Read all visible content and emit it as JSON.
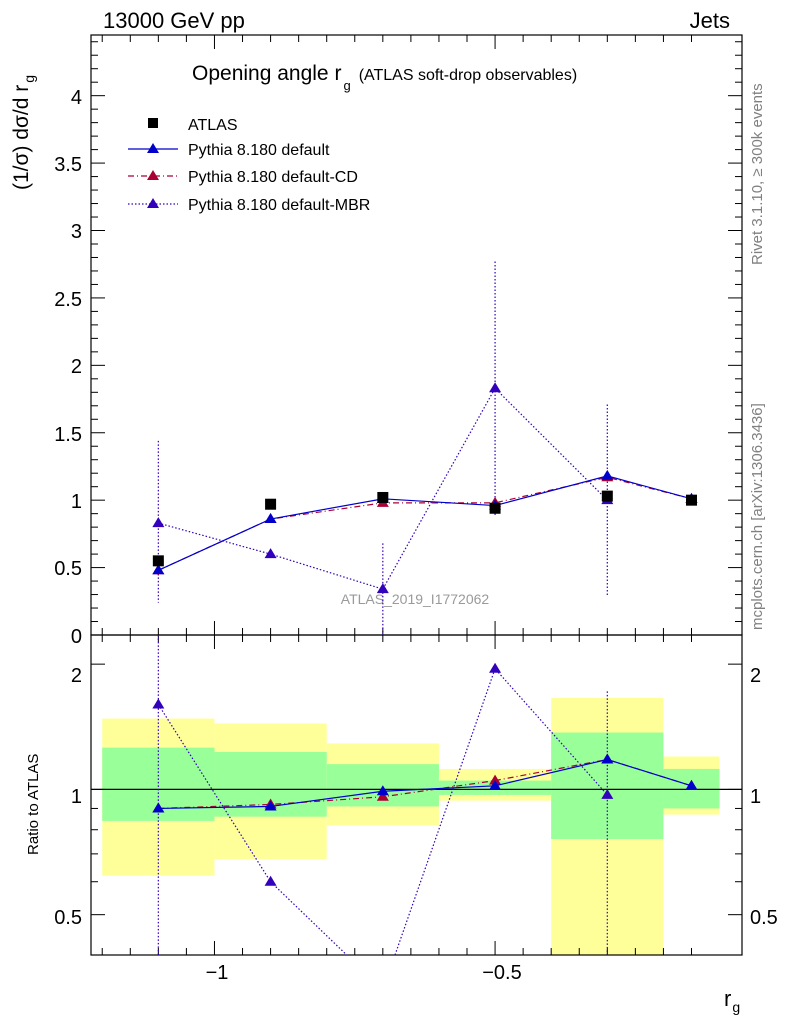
{
  "header": {
    "energy": "13000 GeV pp",
    "process": "Jets"
  },
  "side_labels": {
    "rivet": "Rivet 3.1.10, ≥ 300k events",
    "mcplots": "mcplots.cern.ch [arXiv:1306.3436]"
  },
  "watermark": "ATLAS_2019_I1772062",
  "title": {
    "main": "Opening angle r",
    "sub": "g",
    "note": "(ATLAS soft-drop observables)"
  },
  "axes": {
    "x_label": "r",
    "x_label_sub": "g",
    "y_label": "(1/σ) dσ/d r",
    "y_label_sub": "g",
    "ratio_label": "Ratio to ATLAS",
    "x_ticks": [
      "−1",
      "−0.5"
    ],
    "y_ticks": [
      "0",
      "0.5",
      "1",
      "1.5",
      "2",
      "2.5",
      "3",
      "3.5",
      "4"
    ],
    "ratio_ticks": [
      "0.5",
      "1",
      "2"
    ]
  },
  "legend": [
    {
      "label": "ATLAS"
    },
    {
      "label": "Pythia 8.180 default"
    },
    {
      "label": "Pythia 8.180 default-CD"
    },
    {
      "label": "Pythia 8.180 default-MBR"
    }
  ],
  "colors": {
    "data": "#000000",
    "default": "#0000cc",
    "cd": "#aa0033",
    "mbr": "#3300bb",
    "band_inner": "#99ff99",
    "band_outer": "#ffff99"
  },
  "chart_data": {
    "type": "line",
    "x_range": [
      -1.22,
      -0.06
    ],
    "main": {
      "y_range": [
        0,
        4.45
      ],
      "bins": [
        [
          -1.2,
          -1.0
        ],
        [
          -1.0,
          -0.8
        ],
        [
          -0.8,
          -0.6
        ],
        [
          -0.6,
          -0.4
        ],
        [
          -0.4,
          -0.2
        ],
        [
          -0.2,
          -0.1
        ]
      ],
      "x": [
        -1.1,
        -0.9,
        -0.7,
        -0.5,
        -0.3,
        -0.15
      ],
      "series": [
        {
          "name": "ATLAS",
          "values": [
            0.55,
            0.97,
            1.02,
            0.94,
            1.03,
            1.0
          ]
        },
        {
          "name": "Pythia 8.180 default",
          "values": [
            0.48,
            0.86,
            1.01,
            0.96,
            1.18,
            1.01
          ]
        },
        {
          "name": "Pythia 8.180 default-CD",
          "values": [
            0.48,
            0.86,
            0.98,
            0.98,
            1.17,
            1.01
          ],
          "err_low": [
            0.05,
            0.02,
            0.02,
            0.02,
            0.02,
            0.01
          ],
          "err_high": [
            0.05,
            0.02,
            0.02,
            0.02,
            0.02,
            0.01
          ]
        },
        {
          "name": "Pythia 8.180 default-MBR",
          "values": [
            0.83,
            0.6,
            0.34,
            1.83,
            1.0,
            null
          ],
          "err_low": [
            0.59,
            0.0,
            0.34,
            0.95,
            0.71,
            0
          ],
          "err_high": [
            0.61,
            0.0,
            0.34,
            0.94,
            0.71,
            0
          ]
        }
      ]
    },
    "ratio": {
      "y_range": [
        0.4,
        2.35
      ],
      "log_scale": true,
      "reference": 1.0,
      "inner_band": [
        [
          0.84,
          1.26
        ],
        [
          0.86,
          1.23
        ],
        [
          0.91,
          1.15
        ],
        [
          0.97,
          1.05
        ],
        [
          0.76,
          1.37
        ],
        [
          0.9,
          1.12
        ]
      ],
      "outer_band": [
        [
          0.62,
          1.48
        ],
        [
          0.68,
          1.44
        ],
        [
          0.82,
          1.29
        ],
        [
          0.94,
          1.12
        ],
        [
          0.35,
          1.66
        ],
        [
          0.87,
          1.2
        ]
      ],
      "series": [
        {
          "name": "Pythia 8.180 default",
          "values": [
            0.9,
            0.91,
            0.99,
            1.02,
            1.18,
            1.02
          ]
        },
        {
          "name": "Pythia 8.180 default-CD",
          "values": [
            0.9,
            0.92,
            0.96,
            1.05,
            1.18,
            1.02
          ]
        },
        {
          "name": "Pythia 8.180 default-MBR",
          "values": [
            1.6,
            0.6,
            0.33,
            1.95,
            0.97,
            null
          ],
          "err_low": [
            1.25,
            0,
            0,
            0,
            0.68,
            0
          ],
          "err_high": [
            1.2,
            0,
            0,
            0,
            0.75,
            0
          ]
        }
      ]
    }
  }
}
